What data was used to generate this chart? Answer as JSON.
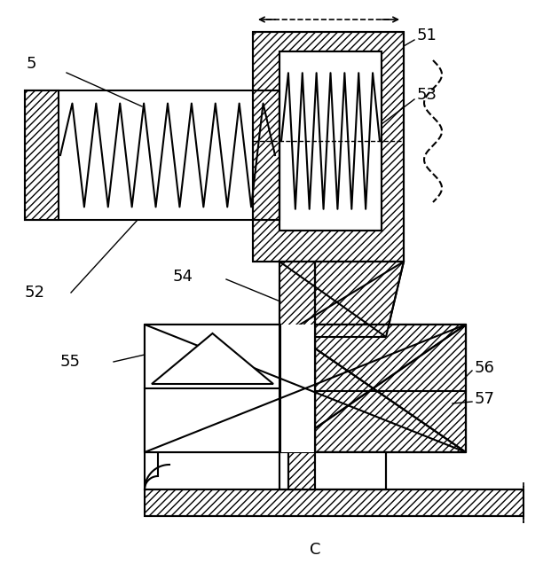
{
  "bg_color": "#ffffff",
  "line_color": "#000000",
  "lw": 1.5,
  "fig_width": 6.21,
  "fig_height": 6.62,
  "dpi": 100
}
